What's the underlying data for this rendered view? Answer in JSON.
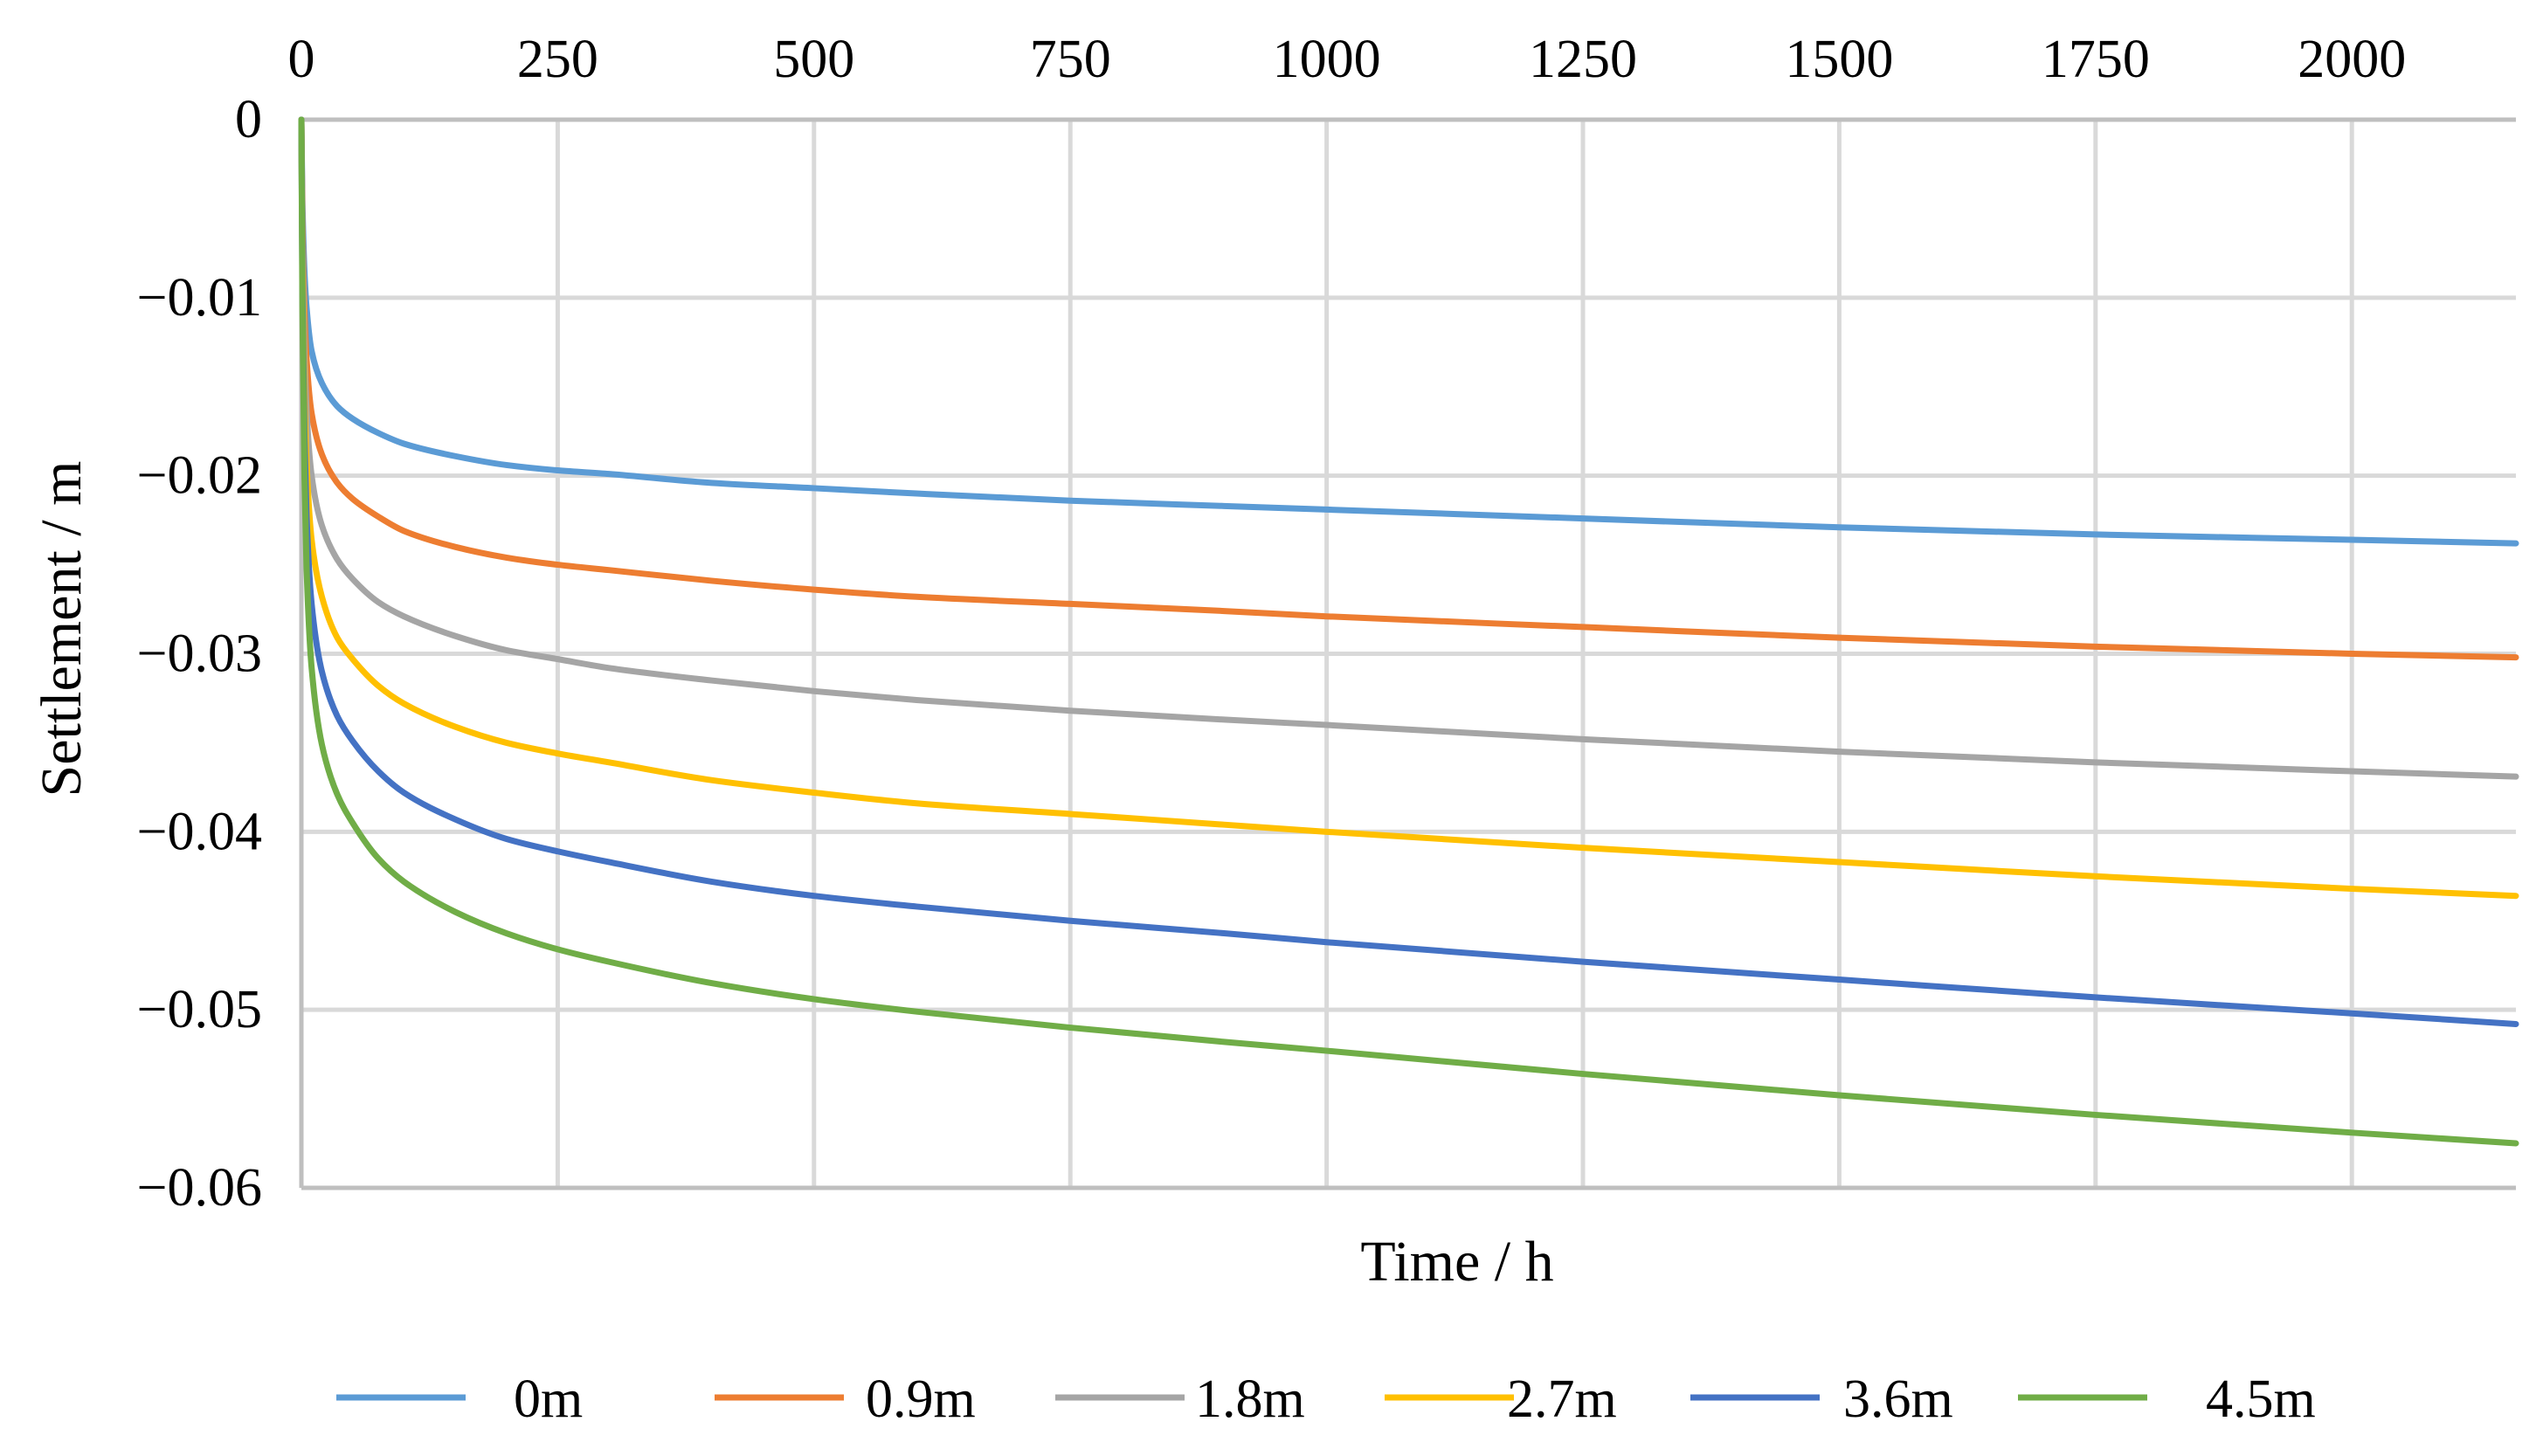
{
  "chart_data": {
    "type": "line",
    "title": "",
    "xlabel": "Time / h",
    "ylabel": "Settlement / m",
    "x_axis_position": "top",
    "xlim": [
      0,
      2160
    ],
    "ylim": [
      -0.06,
      0
    ],
    "xticks": [
      0,
      250,
      500,
      750,
      1000,
      1250,
      1500,
      1750,
      2000
    ],
    "xtick_labels": [
      "0",
      "250",
      "500",
      "750",
      "1000",
      "1250",
      "1500",
      "1750",
      "2000"
    ],
    "yticks": [
      0,
      -0.01,
      -0.02,
      -0.03,
      -0.04,
      -0.05,
      -0.06
    ],
    "ytick_labels": [
      "0",
      "−0.01",
      "−0.02",
      "−0.03",
      "−0.04",
      "−0.05",
      "−0.06"
    ],
    "grid": true,
    "legend_position": "bottom",
    "x": [
      0,
      1,
      3,
      5,
      10,
      20,
      35,
      50,
      75,
      100,
      150,
      200,
      250,
      300,
      400,
      500,
      600,
      750,
      900,
      1000,
      1250,
      1500,
      1750,
      2000,
      2160
    ],
    "series": [
      {
        "name": "0m",
        "color": "#5b9bd5",
        "values": [
          0,
          -0.0045,
          -0.0085,
          -0.0105,
          -0.013,
          -0.0148,
          -0.0161,
          -0.0168,
          -0.0176,
          -0.0182,
          -0.0189,
          -0.0194,
          -0.0197,
          -0.0199,
          -0.0204,
          -0.0207,
          -0.021,
          -0.0214,
          -0.0217,
          -0.0219,
          -0.0224,
          -0.0229,
          -0.0233,
          -0.0236,
          -0.0238
        ]
      },
      {
        "name": "0.9m",
        "color": "#ed7d31",
        "values": [
          0,
          -0.0057,
          -0.0107,
          -0.0134,
          -0.0165,
          -0.0188,
          -0.0204,
          -0.0213,
          -0.0223,
          -0.0231,
          -0.024,
          -0.0246,
          -0.025,
          -0.0253,
          -0.0259,
          -0.0264,
          -0.0268,
          -0.0272,
          -0.0276,
          -0.0279,
          -0.0285,
          -0.0291,
          -0.0296,
          -0.03,
          -0.0302
        ]
      },
      {
        "name": "1.8m",
        "color": "#a5a5a5",
        "values": [
          0,
          -0.0069,
          -0.0131,
          -0.0163,
          -0.02,
          -0.0228,
          -0.0247,
          -0.0258,
          -0.0271,
          -0.0279,
          -0.029,
          -0.0298,
          -0.0303,
          -0.0308,
          -0.0315,
          -0.0321,
          -0.0326,
          -0.0332,
          -0.0337,
          -0.034,
          -0.0348,
          -0.0355,
          -0.0361,
          -0.0366,
          -0.0369
        ]
      },
      {
        "name": "2.7m",
        "color": "#ffc000",
        "values": [
          0,
          -0.0082,
          -0.0154,
          -0.0192,
          -0.0236,
          -0.0268,
          -0.0291,
          -0.0303,
          -0.0318,
          -0.0328,
          -0.0341,
          -0.035,
          -0.0356,
          -0.0361,
          -0.0371,
          -0.0378,
          -0.0384,
          -0.039,
          -0.0396,
          -0.04,
          -0.0409,
          -0.0417,
          -0.0425,
          -0.0432,
          -0.0436
        ]
      },
      {
        "name": "3.6m",
        "color": "#4472c4",
        "values": [
          0,
          -0.0095,
          -0.0178,
          -0.0222,
          -0.0272,
          -0.031,
          -0.0335,
          -0.0349,
          -0.0366,
          -0.0378,
          -0.0393,
          -0.0404,
          -0.0411,
          -0.0417,
          -0.0428,
          -0.0436,
          -0.0442,
          -0.045,
          -0.0457,
          -0.0462,
          -0.0473,
          -0.0483,
          -0.0493,
          -0.0502,
          -0.0508
        ]
      },
      {
        "name": "4.5m",
        "color": "#70ad47",
        "values": [
          0,
          -0.0107,
          -0.0201,
          -0.0251,
          -0.0308,
          -0.0351,
          -0.0379,
          -0.0395,
          -0.0415,
          -0.0428,
          -0.0445,
          -0.0457,
          -0.0466,
          -0.0473,
          -0.0485,
          -0.0494,
          -0.0501,
          -0.051,
          -0.0518,
          -0.0523,
          -0.0536,
          -0.0548,
          -0.0559,
          -0.0569,
          -0.0575
        ]
      }
    ]
  }
}
